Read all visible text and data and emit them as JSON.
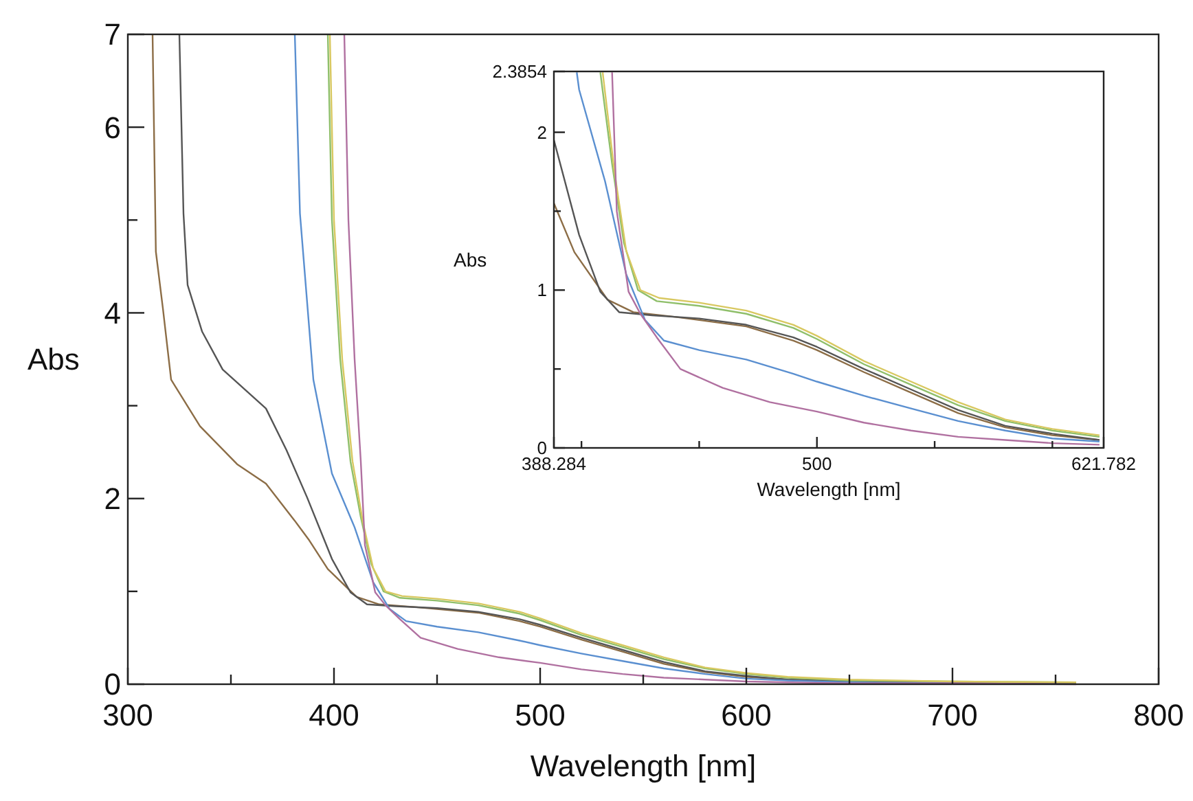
{
  "chart_data": [
    {
      "type": "line",
      "xlabel": "Wavelength [nm]",
      "ylabel": "Abs",
      "xlim": [
        300,
        800
      ],
      "ylim": [
        0,
        7
      ],
      "xticks": [
        300,
        {
          "value": 350,
          "label": null
        },
        400,
        {
          "value": 450,
          "label": null
        },
        500,
        {
          "value": 550,
          "label": null
        },
        600,
        {
          "value": 650,
          "label": null
        },
        700,
        {
          "value": 750,
          "label": null
        },
        800
      ],
      "yticks": [
        0,
        {
          "value": 1,
          "label": null
        },
        2,
        {
          "value": 3,
          "label": null
        },
        4,
        {
          "value": 5,
          "label": null
        },
        6,
        7
      ],
      "series": [
        {
          "color": "#8c6d46",
          "x": [
            312,
            313.6,
            317,
            321,
            335,
            353,
            367,
            381,
            388,
            397,
            411,
            422,
            440,
            450,
            470,
            490,
            500,
            520,
            540,
            560,
            580,
            600,
            620,
            650,
            700,
            760
          ],
          "values": [
            7,
            4.66,
            4.05,
            3.28,
            2.78,
            2.37,
            2.16,
            1.76,
            1.55,
            1.24,
            0.94,
            0.86,
            0.83,
            0.81,
            0.77,
            0.68,
            0.62,
            0.48,
            0.35,
            0.22,
            0.13,
            0.08,
            0.05,
            0.03,
            0.02,
            0.01
          ]
        },
        {
          "color": "#555555",
          "x": [
            325,
            327,
            329,
            336,
            346,
            367,
            377,
            387,
            399,
            408,
            416,
            430,
            450,
            470,
            490,
            500,
            520,
            540,
            560,
            580,
            600,
            620,
            650,
            700,
            760
          ],
          "values": [
            7,
            5.07,
            4.3,
            3.8,
            3.39,
            2.97,
            2.52,
            2.01,
            1.35,
            0.99,
            0.86,
            0.84,
            0.82,
            0.78,
            0.7,
            0.64,
            0.5,
            0.37,
            0.24,
            0.14,
            0.09,
            0.05,
            0.03,
            0.02,
            0.01
          ]
        },
        {
          "color": "#5a8fd0",
          "x": [
            381,
            383.5,
            390,
            399,
            410,
            419,
            427,
            435,
            450,
            470,
            490,
            500,
            520,
            540,
            560,
            580,
            600,
            620,
            650,
            700
          ],
          "values": [
            7,
            5.07,
            3.28,
            2.27,
            1.69,
            1.1,
            0.81,
            0.68,
            0.62,
            0.56,
            0.47,
            0.42,
            0.33,
            0.25,
            0.17,
            0.11,
            0.06,
            0.04,
            0.02,
            0.01
          ]
        },
        {
          "color": "#8fbf6a",
          "x": [
            397,
            399,
            403,
            408,
            413,
            418,
            424,
            432,
            450,
            470,
            490,
            500,
            520,
            540,
            560,
            580,
            600,
            620,
            650,
            700,
            760
          ],
          "values": [
            7,
            5,
            3.5,
            2.4,
            1.8,
            1.3,
            1,
            0.93,
            0.9,
            0.85,
            0.76,
            0.69,
            0.53,
            0.4,
            0.27,
            0.17,
            0.11,
            0.07,
            0.04,
            0.03,
            0.02
          ]
        },
        {
          "color": "#d8c860",
          "x": [
            398,
            400,
            404,
            409,
            414,
            419,
            425,
            433,
            450,
            470,
            490,
            500,
            520,
            540,
            560,
            580,
            600,
            620,
            650,
            700,
            760
          ],
          "values": [
            7,
            5,
            3.5,
            2.4,
            1.75,
            1.25,
            1,
            0.95,
            0.92,
            0.87,
            0.78,
            0.71,
            0.55,
            0.42,
            0.29,
            0.18,
            0.12,
            0.08,
            0.05,
            0.03,
            0.02
          ]
        },
        {
          "color": "#b070a0",
          "x": [
            405,
            407,
            410,
            413,
            415,
            420,
            425,
            432,
            442,
            460,
            480,
            500,
            520,
            540,
            560,
            580,
            600,
            620,
            650,
            700,
            760
          ],
          "values": [
            7,
            5,
            3.5,
            2.4,
            1.5,
            0.99,
            0.85,
            0.7,
            0.5,
            0.38,
            0.29,
            0.23,
            0.16,
            0.11,
            0.07,
            0.05,
            0.03,
            0.02,
            0.01,
            0.01,
            0
          ]
        }
      ]
    },
    {
      "type": "line",
      "xlabel": "Wavelength [nm]",
      "ylabel": "Abs",
      "xlim": [
        388.284,
        621.782
      ],
      "ylim": [
        0,
        2.3854
      ],
      "xticks": [
        388.284,
        {
          "value": 400,
          "label": null
        },
        {
          "value": 450,
          "label": null
        },
        500,
        {
          "value": 550,
          "label": null
        },
        {
          "value": 600,
          "label": null
        },
        621.782
      ],
      "yticks": [
        0,
        {
          "value": 0.5,
          "label": null
        },
        1,
        {
          "value": 1.5,
          "label": null
        },
        2,
        2.3854
      ],
      "series": [
        {
          "color": "#8c6d46",
          "x": [
            388.3,
            397,
            411,
            422,
            440,
            450,
            470,
            490,
            500,
            520,
            540,
            560,
            580,
            600,
            620
          ],
          "values": [
            1.55,
            1.24,
            0.94,
            0.86,
            0.83,
            0.81,
            0.77,
            0.68,
            0.62,
            0.48,
            0.35,
            0.22,
            0.13,
            0.08,
            0.05
          ]
        },
        {
          "color": "#555555",
          "x": [
            388.3,
            399,
            408,
            416,
            430,
            450,
            470,
            490,
            500,
            520,
            540,
            560,
            580,
            600,
            620
          ],
          "values": [
            1.95,
            1.35,
            0.99,
            0.86,
            0.84,
            0.82,
            0.78,
            0.7,
            0.64,
            0.5,
            0.37,
            0.24,
            0.14,
            0.09,
            0.05
          ]
        },
        {
          "color": "#5a8fd0",
          "x": [
            398,
            399,
            410,
            419,
            427,
            435,
            450,
            470,
            490,
            500,
            520,
            540,
            560,
            580,
            600,
            620
          ],
          "values": [
            2.38,
            2.27,
            1.69,
            1.1,
            0.81,
            0.68,
            0.62,
            0.56,
            0.47,
            0.42,
            0.33,
            0.25,
            0.17,
            0.11,
            0.06,
            0.04
          ]
        },
        {
          "color": "#8fbf6a",
          "x": [
            408,
            413,
            418,
            424,
            432,
            450,
            470,
            490,
            500,
            520,
            540,
            560,
            580,
            600,
            620
          ],
          "values": [
            2.38,
            1.8,
            1.3,
            1,
            0.93,
            0.9,
            0.85,
            0.76,
            0.69,
            0.53,
            0.4,
            0.27,
            0.17,
            0.11,
            0.07
          ]
        },
        {
          "color": "#d8c860",
          "x": [
            409,
            414,
            419,
            425,
            433,
            450,
            470,
            490,
            500,
            520,
            540,
            560,
            580,
            600,
            620
          ],
          "values": [
            2.38,
            1.75,
            1.25,
            1,
            0.95,
            0.92,
            0.87,
            0.78,
            0.71,
            0.55,
            0.42,
            0.29,
            0.18,
            0.12,
            0.08
          ]
        },
        {
          "color": "#b070a0",
          "x": [
            413,
            415,
            420,
            425,
            432,
            442,
            460,
            480,
            500,
            520,
            540,
            560,
            580,
            600,
            620
          ],
          "values": [
            2.38,
            1.5,
            0.99,
            0.85,
            0.7,
            0.5,
            0.38,
            0.29,
            0.23,
            0.16,
            0.11,
            0.07,
            0.05,
            0.03,
            0.02
          ]
        }
      ]
    }
  ]
}
